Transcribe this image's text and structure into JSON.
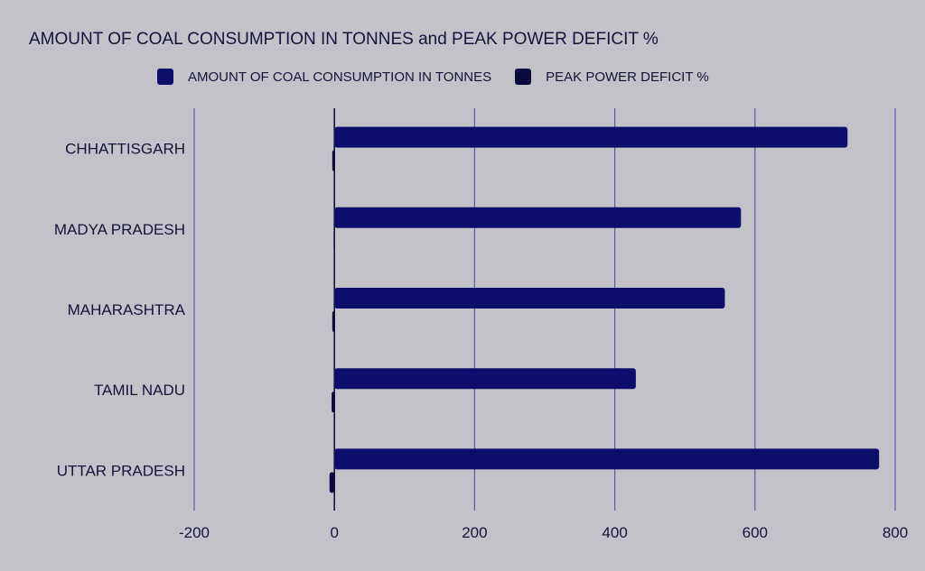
{
  "chart_data": {
    "type": "bar",
    "orientation": "horizontal",
    "title": "AMOUNT OF COAL CONSUMPTION IN TONNES and PEAK POWER DEFICIT %",
    "categories": [
      "CHHATTISGARH",
      "MADYA PRADESH",
      "MAHARASHTRA",
      "TAMIL NADU",
      "UTTAR PRADESH"
    ],
    "series": [
      {
        "name": "AMOUNT OF COAL CONSUMPTION IN TONNES",
        "color": "#0d0d6b",
        "values": [
          732,
          580,
          557,
          430,
          777
        ]
      },
      {
        "name": "PEAK POWER DEFICIT %",
        "color": "#0a0a3c",
        "values": [
          -3,
          -1,
          -3,
          -4,
          -7
        ]
      }
    ],
    "xlim": [
      -200,
      800
    ],
    "xticks": [
      -200,
      0,
      200,
      400,
      600,
      800
    ],
    "grid": true,
    "legend_position": "top"
  },
  "colors": {
    "background": "#c3c2c9",
    "gridline": "#5a5aa8",
    "zero_line": "#14143a",
    "text": "#14143a"
  }
}
